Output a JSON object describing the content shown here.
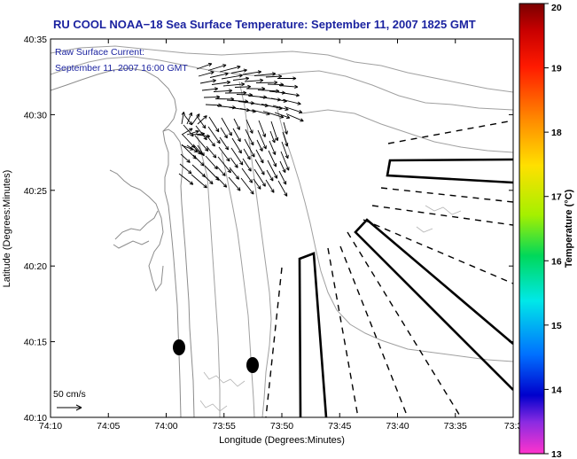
{
  "title": "RU COOL  NOAA−18  Sea Surface Temperature:  September 11, 2007 1825 GMT",
  "current_label": {
    "line1": "Raw Surface Current:",
    "line2": "September 11, 2007 16:00 GMT"
  },
  "scale_label": "50 cm/s",
  "colorbar": {
    "label": "Temperature (°C)",
    "ticks": [
      "20",
      "19",
      "18",
      "17",
      "16",
      "15",
      "14",
      "13"
    ],
    "range": [
      13,
      20
    ]
  },
  "chart_data": {
    "type": "map",
    "xlabel": "Longitude (Degrees:Minutes)",
    "ylabel": "Latitude (Degrees:Minutes)",
    "x_ticks": [
      "74:10",
      "74:05",
      "74:00",
      "73:55",
      "73:50",
      "73:45",
      "73:40",
      "73:35",
      "73:3"
    ],
    "y_ticks": [
      "40:35",
      "40:30",
      "40:25",
      "40:20",
      "40:15",
      "40:10"
    ],
    "colors": {
      "title": "#1b23a0",
      "contour": "#8c8c8c",
      "frame": "#000000"
    }
  }
}
